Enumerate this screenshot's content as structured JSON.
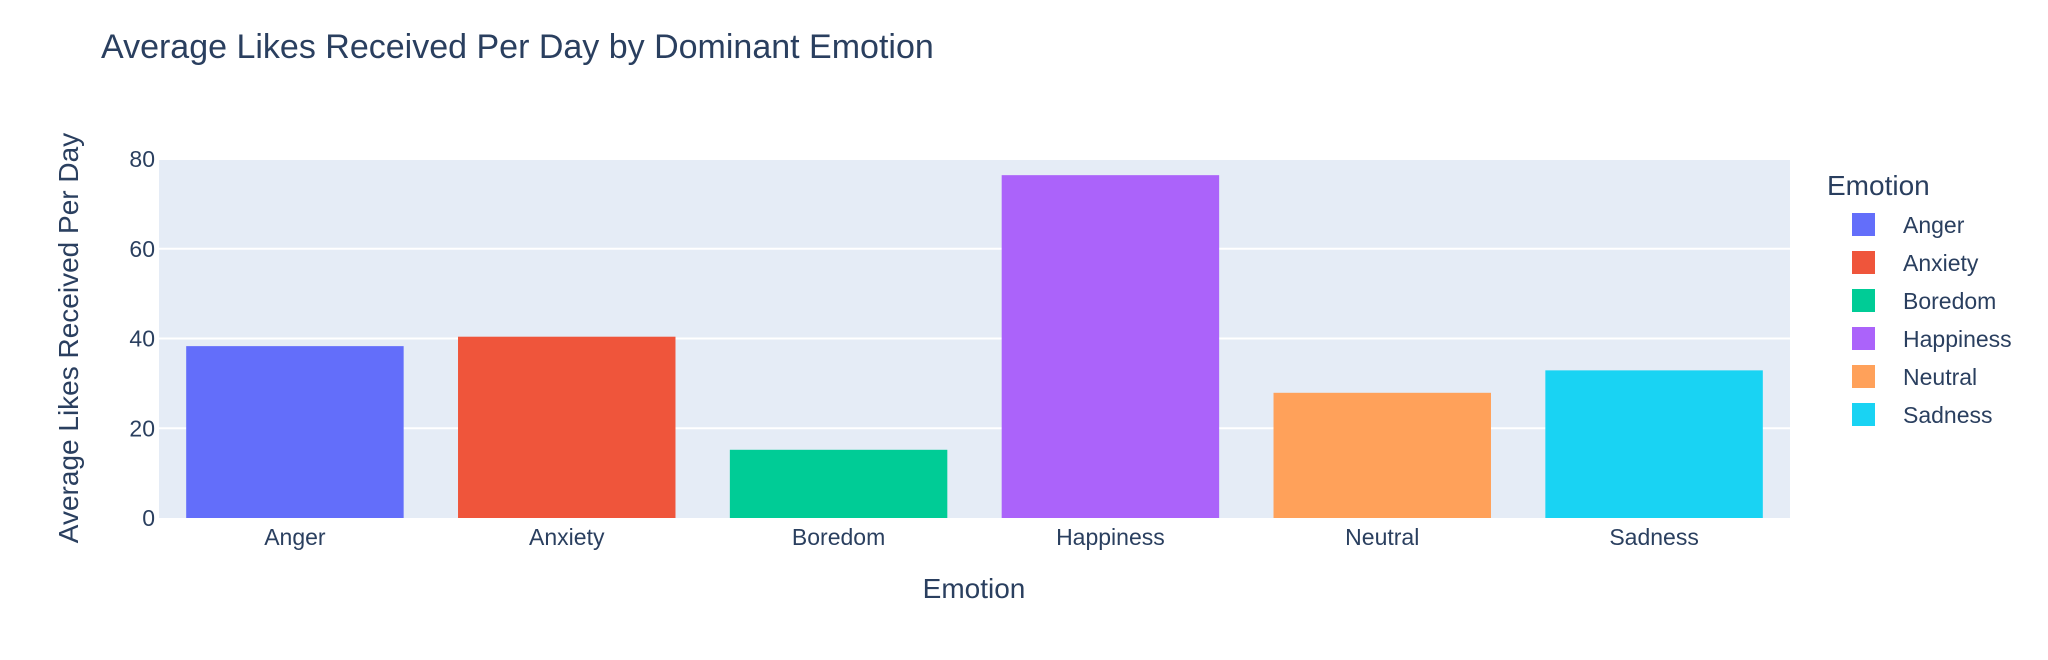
{
  "chart_data": {
    "type": "bar",
    "title": "Average Likes Received Per Day by Dominant Emotion",
    "xlabel": "Emotion",
    "ylabel": "Average Likes Received Per Day",
    "categories": [
      "Anger",
      "Anxiety",
      "Boredom",
      "Happiness",
      "Neutral",
      "Sadness"
    ],
    "values": [
      38.3,
      40.4,
      15.2,
      76.4,
      27.9,
      32.9
    ],
    "colors": [
      "#636efa",
      "#EF553B",
      "#00cc96",
      "#ab63fa",
      "#FFA15A",
      "#19d3f3"
    ],
    "ylim": [
      0,
      80
    ],
    "yticks": [
      0,
      20,
      40,
      60,
      80
    ],
    "grid": true,
    "legend": {
      "title": "Emotion",
      "placement": "right",
      "entries": [
        "Anger",
        "Anxiety",
        "Boredom",
        "Happiness",
        "Neutral",
        "Sadness"
      ]
    },
    "plot_background": "#E5ECF6"
  }
}
